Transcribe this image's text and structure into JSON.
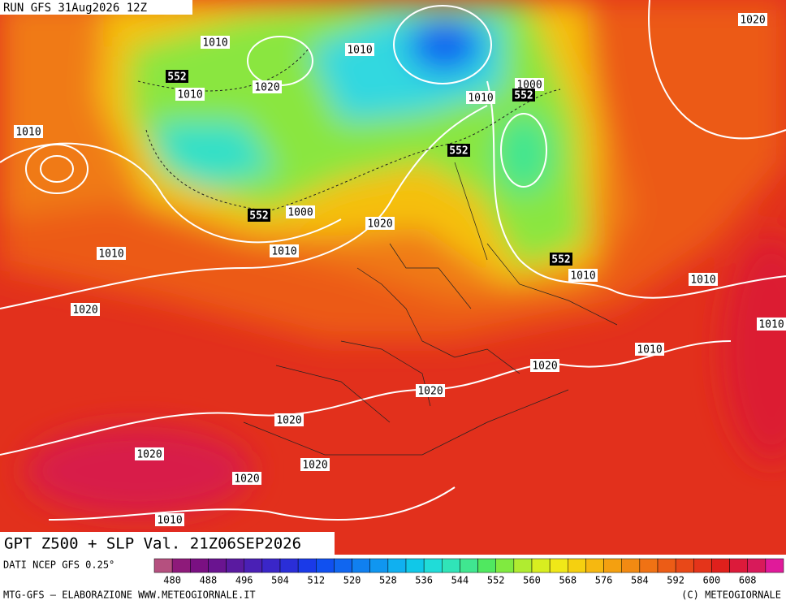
{
  "header": {
    "run": "RUN GFS 31Aug2026 12Z"
  },
  "title": "GPT Z500 + SLP Val. 21Z06SEP2026",
  "isobar_labels": [
    "1010",
    "1010",
    "1020",
    "1010",
    "1010",
    "1000",
    "1010",
    "1000",
    "1020",
    "1010",
    "1010",
    "1010",
    "1010",
    "1020",
    "1010",
    "1020",
    "1020",
    "1020",
    "1020",
    "1020",
    "1020",
    "1010",
    "1020",
    "1010"
  ],
  "height_labels": [
    "552",
    "552",
    "552",
    "552",
    "552"
  ],
  "legend": {
    "source": "DATI NCEP GFS 0.25°",
    "colors": [
      "#b5507f",
      "#8e1a7a",
      "#7a1082",
      "#6a1490",
      "#5a1aa0",
      "#4a20b5",
      "#3a26c8",
      "#2a2ed8",
      "#1a3ae8",
      "#1050f0",
      "#1066f0",
      "#1080f0",
      "#1096f0",
      "#10b0f0",
      "#10c8e8",
      "#20dcd8",
      "#30e4b8",
      "#40e690",
      "#50e860",
      "#80ea40",
      "#b0ec30",
      "#d8ee20",
      "#f0e818",
      "#f5d010",
      "#f6b810",
      "#f4a010",
      "#f28a12",
      "#f07214",
      "#ec5c16",
      "#e84818",
      "#e4341a",
      "#e0201c",
      "#dc1a3a",
      "#d81a5a",
      "#e01a9a"
    ],
    "ticks": [
      480,
      488,
      496,
      504,
      512,
      520,
      528,
      536,
      544,
      552,
      560,
      568,
      576,
      584,
      592,
      600,
      608
    ]
  },
  "footer": {
    "left": "MTG-GFS – ELABORAZIONE WWW.METEOGIORNALE.IT",
    "right": "(C) METEOGIORNALE"
  }
}
